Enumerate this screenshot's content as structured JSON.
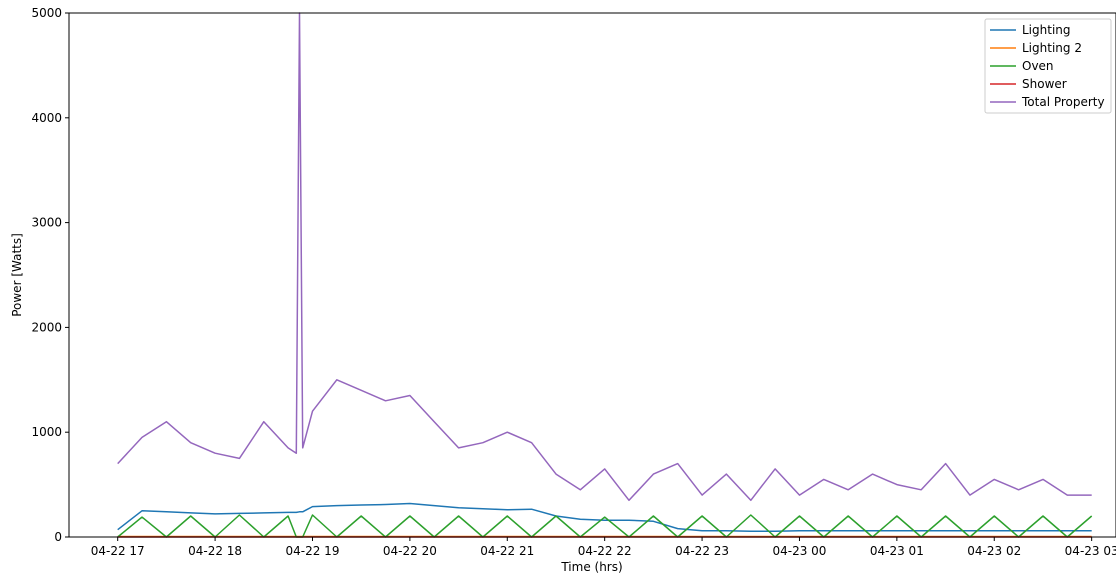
{
  "chart_data": {
    "type": "line",
    "title": "",
    "xlabel": "Time (hrs)",
    "ylabel": "Power [Watts]",
    "ylim": [
      0,
      5000
    ],
    "xlim": [
      "04-22 16:30",
      "04-23 03:15"
    ],
    "x_ticks": [
      "04-22 17",
      "04-22 18",
      "04-22 19",
      "04-22 20",
      "04-22 21",
      "04-22 22",
      "04-22 23",
      "04-23 00",
      "04-23 01",
      "04-23 02",
      "04-23 03"
    ],
    "y_ticks": [
      0,
      1000,
      2000,
      3000,
      4000,
      5000
    ],
    "grid": false,
    "legend_position": "top-right",
    "x": [
      "17:00",
      "17:15",
      "17:30",
      "17:45",
      "18:00",
      "18:15",
      "18:30",
      "18:45",
      "18:50",
      "18:52",
      "18:54",
      "19:00",
      "19:15",
      "19:30",
      "19:45",
      "20:00",
      "20:15",
      "20:30",
      "20:45",
      "21:00",
      "21:15",
      "21:30",
      "21:45",
      "22:00",
      "22:15",
      "22:30",
      "22:45",
      "23:00",
      "23:15",
      "23:30",
      "23:45",
      "00:00",
      "00:15",
      "00:30",
      "00:45",
      "01:00",
      "01:15",
      "01:30",
      "01:45",
      "02:00",
      "02:15",
      "02:30",
      "02:45",
      "03:00"
    ],
    "series": [
      {
        "name": "Lighting",
        "color": "#1f77b4",
        "values": [
          70,
          250,
          240,
          230,
          220,
          225,
          230,
          235,
          235,
          240,
          240,
          290,
          300,
          305,
          310,
          320,
          300,
          280,
          270,
          260,
          265,
          200,
          170,
          160,
          160,
          150,
          80,
          60,
          60,
          55,
          55,
          60,
          60,
          60,
          60,
          60,
          60,
          60,
          60,
          60,
          60,
          60,
          60,
          60
        ]
      },
      {
        "name": "Lighting 2",
        "color": "#ff7f0e",
        "values": [
          5,
          5,
          5,
          5,
          5,
          5,
          5,
          5,
          5,
          5,
          5,
          5,
          5,
          5,
          5,
          5,
          5,
          5,
          5,
          5,
          5,
          5,
          5,
          5,
          5,
          5,
          5,
          5,
          5,
          5,
          5,
          5,
          5,
          5,
          5,
          5,
          5,
          5,
          5,
          5,
          5,
          5,
          5,
          5
        ]
      },
      {
        "name": "Oven",
        "color": "#2ca02c",
        "values": [
          0,
          190,
          0,
          200,
          0,
          210,
          0,
          200,
          0,
          0,
          0,
          210,
          0,
          200,
          0,
          200,
          0,
          200,
          0,
          200,
          0,
          200,
          0,
          190,
          0,
          200,
          0,
          200,
          0,
          210,
          0,
          200,
          0,
          200,
          0,
          200,
          0,
          200,
          0,
          200,
          0,
          200,
          0,
          200
        ]
      },
      {
        "name": "Shower",
        "color": "#d62728",
        "values": [
          0,
          0,
          0,
          0,
          0,
          0,
          0,
          0,
          0,
          0,
          0,
          0,
          0,
          0,
          0,
          0,
          0,
          0,
          0,
          0,
          0,
          0,
          0,
          0,
          0,
          0,
          0,
          0,
          0,
          0,
          0,
          0,
          0,
          0,
          0,
          0,
          0,
          0,
          0,
          0,
          0,
          0,
          0,
          0
        ]
      },
      {
        "name": "Total Property",
        "color": "#9467bd",
        "values": [
          700,
          950,
          1100,
          900,
          800,
          750,
          1100,
          850,
          800,
          5000,
          850,
          1200,
          1500,
          1400,
          1300,
          1350,
          1100,
          850,
          900,
          1000,
          900,
          600,
          450,
          650,
          350,
          600,
          700,
          400,
          600,
          350,
          650,
          400,
          550,
          450,
          600,
          500,
          450,
          700,
          400,
          550,
          450,
          550,
          400,
          400
        ]
      }
    ]
  }
}
